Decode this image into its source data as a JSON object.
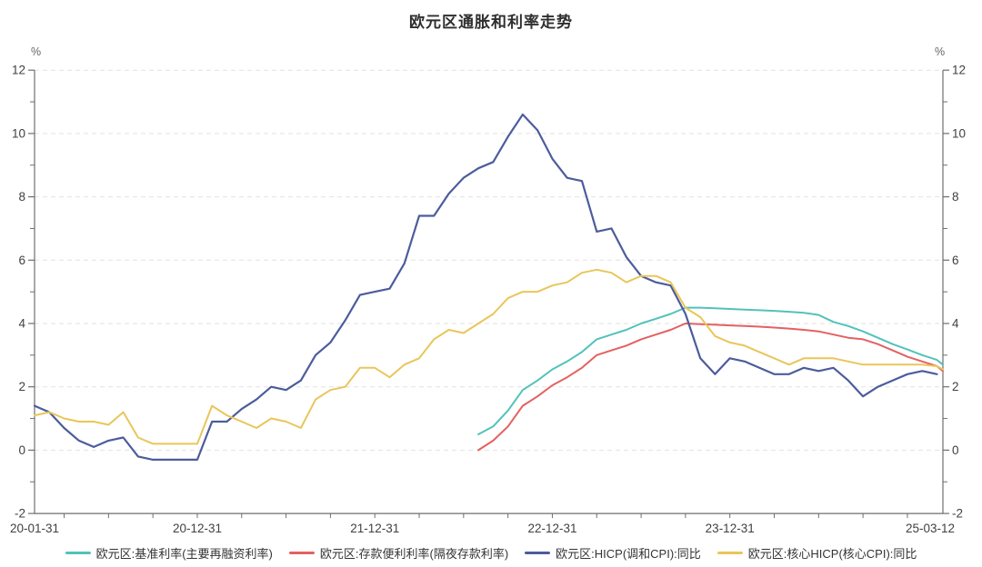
{
  "title": "欧元区通胀和利率走势",
  "y_axis_unit_left": "%",
  "y_axis_unit_right": "%",
  "chart_data": {
    "type": "line",
    "title": "欧元区通胀和利率走势",
    "x_axis": {
      "kind": "time-monthly",
      "range_months": [
        0,
        61.4
      ],
      "start_label_date": "2020-01-31",
      "end_label_date": "2025-03-12",
      "ticks": [
        {
          "m": 0,
          "label": "20-01-31"
        },
        {
          "m": 11,
          "label": "20-12-31"
        },
        {
          "m": 23,
          "label": "21-12-31"
        },
        {
          "m": 35,
          "label": "22-12-31"
        },
        {
          "m": 47,
          "label": "23-12-31"
        },
        {
          "m": 61.4,
          "label": "25-03-12"
        }
      ],
      "minor_tick_months": [
        2,
        5,
        8,
        11,
        14,
        17,
        20,
        23,
        26,
        29,
        32,
        35,
        38,
        41,
        44,
        47,
        50,
        53,
        56,
        59
      ]
    },
    "y_axis": {
      "min": -2,
      "max": 12,
      "unit": "%",
      "major_ticks": [
        12,
        10,
        8,
        6,
        4,
        2,
        0,
        -2
      ],
      "minor_ticks": [
        11,
        9,
        7,
        5,
        3,
        1,
        -1
      ],
      "gridline_values": [
        12,
        10,
        8,
        6,
        4,
        2,
        0
      ],
      "grid_dashed": true,
      "dual_axis": true
    },
    "legend_position": "bottom",
    "series": [
      {
        "name": "欧元区:基准利率(主要再融资利率)",
        "color": "#52c2b9",
        "width": 2,
        "start_month": 30,
        "values": [
          0.5,
          0.75,
          1.25,
          1.9,
          2.2,
          2.55,
          2.8,
          3.1,
          3.5,
          3.65,
          3.8,
          4.0,
          4.15,
          4.3,
          4.5,
          4.5,
          4.48,
          4.46,
          4.44,
          4.42,
          4.4,
          4.37,
          4.34,
          4.27,
          4.05,
          3.92,
          3.75,
          3.55,
          3.35,
          3.18,
          3.0,
          2.85,
          2.7
        ]
      },
      {
        "name": "欧元区:存款便利利率(隔夜存款利率)",
        "color": "#e36161",
        "width": 2,
        "start_month": 30,
        "values": [
          0.0,
          0.3,
          0.75,
          1.4,
          1.7,
          2.05,
          2.3,
          2.6,
          3.0,
          3.15,
          3.3,
          3.5,
          3.65,
          3.8,
          4.0,
          3.98,
          3.96,
          3.94,
          3.92,
          3.9,
          3.87,
          3.84,
          3.8,
          3.75,
          3.65,
          3.55,
          3.5,
          3.35,
          3.15,
          2.95,
          2.8,
          2.65,
          2.5
        ]
      },
      {
        "name": "欧元区:HICP(调和CPI):同比",
        "color": "#4c5c9c",
        "width": 2.2,
        "start_month": 0,
        "values": [
          1.4,
          1.2,
          0.7,
          0.3,
          0.1,
          0.3,
          0.4,
          -0.2,
          -0.3,
          -0.3,
          -0.3,
          -0.3,
          0.9,
          0.9,
          1.3,
          1.6,
          2.0,
          1.9,
          2.2,
          3.0,
          3.4,
          4.1,
          4.9,
          5.0,
          5.1,
          5.9,
          7.4,
          7.4,
          8.1,
          8.6,
          8.9,
          9.1,
          9.9,
          10.6,
          10.1,
          9.2,
          8.6,
          8.5,
          6.9,
          7.0,
          6.1,
          5.5,
          5.3,
          5.2,
          4.3,
          2.9,
          2.4,
          2.9,
          2.8,
          2.6,
          2.4,
          2.4,
          2.6,
          2.5,
          2.6,
          2.2,
          1.7,
          2.0,
          2.2,
          2.4,
          2.5,
          2.4
        ]
      },
      {
        "name": "欧元区:核心HICP(核心CPI):同比",
        "color": "#e9c65a",
        "width": 2,
        "start_month": 0,
        "values": [
          1.1,
          1.2,
          1.0,
          0.9,
          0.9,
          0.8,
          1.2,
          0.4,
          0.2,
          0.2,
          0.2,
          0.2,
          1.4,
          1.1,
          0.9,
          0.7,
          1.0,
          0.9,
          0.7,
          1.6,
          1.9,
          2.0,
          2.6,
          2.6,
          2.3,
          2.7,
          2.9,
          3.5,
          3.8,
          3.7,
          4.0,
          4.3,
          4.8,
          5.0,
          5.0,
          5.2,
          5.3,
          5.6,
          5.7,
          5.6,
          5.3,
          5.5,
          5.5,
          5.3,
          4.5,
          4.2,
          3.6,
          3.4,
          3.3,
          3.1,
          2.9,
          2.7,
          2.9,
          2.9,
          2.9,
          2.8,
          2.7,
          2.7,
          2.7,
          2.7,
          2.7,
          2.65,
          2.55
        ]
      }
    ]
  },
  "colors": {
    "axis_line": "#6e6e6e",
    "tick_label": "#404040",
    "gridline": "#e2e2e2",
    "background": "#ffffff"
  }
}
